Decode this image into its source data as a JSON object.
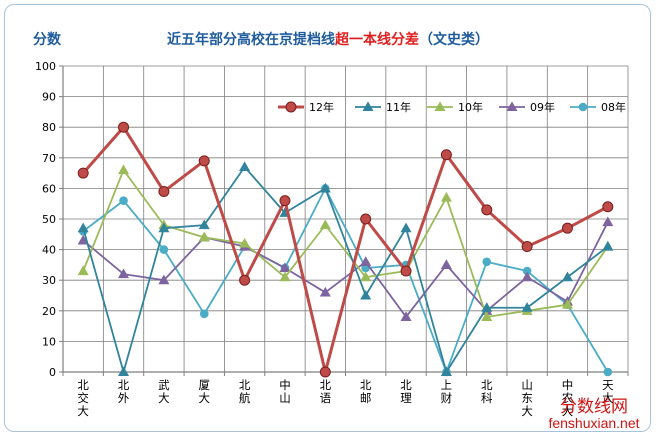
{
  "chart_data": {
    "type": "line",
    "title_part1": "近五年部分高校在京提档线",
    "title_part2": "超一本线分差",
    "title_part3": "（文史类）",
    "ylabel": "分数",
    "ylim": [
      0,
      100
    ],
    "yticks": [
      0,
      10,
      20,
      30,
      40,
      50,
      60,
      70,
      80,
      90,
      100
    ],
    "grid": true,
    "legend_position": "top-right",
    "categories": [
      "北交大",
      "北外",
      "武大",
      "厦大",
      "北航",
      "中山",
      "北语",
      "北邮",
      "北理",
      "上财",
      "北科",
      "山东大",
      "中农大",
      "天大"
    ],
    "series": [
      {
        "name": "12年",
        "color": "#be4b48",
        "marker": "circle-large",
        "values": [
          65,
          80,
          59,
          69,
          30,
          56,
          0,
          50,
          33,
          71,
          53,
          41,
          47,
          54
        ]
      },
      {
        "name": "11年",
        "color": "#31849b",
        "marker": "triangle",
        "values": [
          47,
          0,
          47,
          48,
          67,
          52,
          60,
          25,
          47,
          0,
          21,
          21,
          31,
          41
        ]
      },
      {
        "name": "10年",
        "color": "#9bbb59",
        "marker": "triangle",
        "values": [
          33,
          66,
          48,
          44,
          42,
          31,
          48,
          31,
          33,
          57,
          18,
          20,
          22,
          41
        ]
      },
      {
        "name": "09年",
        "color": "#7e649e",
        "marker": "triangle",
        "values": [
          43,
          32,
          30,
          44,
          41,
          34,
          26,
          36,
          18,
          35,
          20,
          31,
          23,
          49
        ]
      },
      {
        "name": "08年",
        "color": "#4bacc6",
        "marker": "circle",
        "values": [
          46,
          56,
          40,
          19,
          41,
          34,
          60,
          34,
          35,
          0,
          36,
          33,
          22,
          0
        ]
      }
    ]
  },
  "watermark": {
    "line1": "分数线网",
    "line2": "fenshuxian.net"
  },
  "colors": {
    "title_blue": "#1f5c9e",
    "title_red": "#e01f1f",
    "grid": "#7f7f7f",
    "axis": "#7f7f7f"
  }
}
